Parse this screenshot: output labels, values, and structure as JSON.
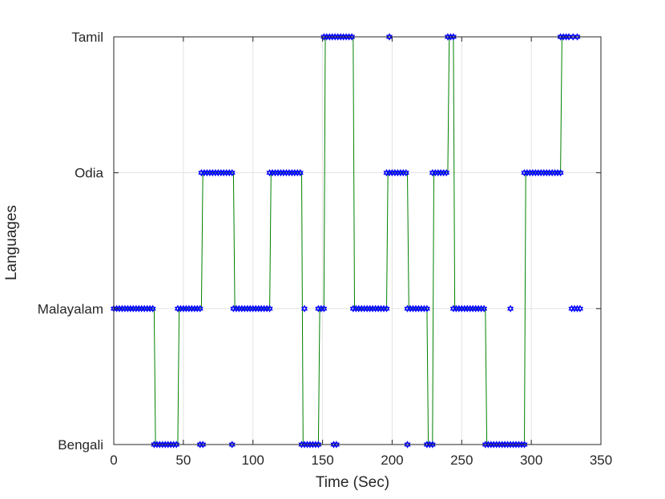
{
  "chart_data": {
    "type": "scatter",
    "title": "",
    "xlabel": "Time (Sec)",
    "ylabel": "Languages",
    "xlim": [
      0,
      350
    ],
    "xticks": [
      0,
      50,
      100,
      150,
      200,
      250,
      300,
      350
    ],
    "categories": [
      "Bengali",
      "Malayalam",
      "Odia",
      "Tamil"
    ],
    "grid": true,
    "line_color": "#008000",
    "marker_color": "#0000ff",
    "marker": "hexagram",
    "segments": [
      {
        "start": 0,
        "end": 29,
        "language": "Malayalam"
      },
      {
        "start": 29,
        "end": 46,
        "language": "Bengali"
      },
      {
        "start": 46,
        "end": 63,
        "language": "Malayalam"
      },
      {
        "start": 63,
        "end": 86,
        "language": "Odia"
      },
      {
        "start": 86,
        "end": 112,
        "language": "Malayalam"
      },
      {
        "start": 112,
        "end": 135,
        "language": "Odia"
      },
      {
        "start": 135,
        "end": 147,
        "language": "Bengali"
      },
      {
        "start": 147,
        "end": 151,
        "language": "Malayalam"
      },
      {
        "start": 151,
        "end": 172,
        "language": "Tamil"
      },
      {
        "start": 172,
        "end": 196,
        "language": "Malayalam"
      },
      {
        "start": 196,
        "end": 211,
        "language": "Odia"
      },
      {
        "start": 211,
        "end": 225,
        "language": "Malayalam"
      },
      {
        "start": 225,
        "end": 229,
        "language": "Bengali"
      },
      {
        "start": 229,
        "end": 240,
        "language": "Odia"
      },
      {
        "start": 240,
        "end": 244,
        "language": "Tamil"
      },
      {
        "start": 244,
        "end": 267,
        "language": "Malayalam"
      },
      {
        "start": 267,
        "end": 295,
        "language": "Bengali"
      },
      {
        "start": 295,
        "end": 321,
        "language": "Odia"
      },
      {
        "start": 321,
        "end": 328,
        "language": "Tamil"
      }
    ],
    "isolated_points": [
      {
        "x": 62,
        "language": "Bengali"
      },
      {
        "x": 64,
        "language": "Bengali"
      },
      {
        "x": 85,
        "language": "Bengali"
      },
      {
        "x": 137,
        "language": "Malayalam"
      },
      {
        "x": 158,
        "language": "Bengali"
      },
      {
        "x": 160,
        "language": "Bengali"
      },
      {
        "x": 198,
        "language": "Tamil"
      },
      {
        "x": 211,
        "language": "Bengali"
      },
      {
        "x": 285,
        "language": "Malayalam"
      },
      {
        "x": 329,
        "language": "Malayalam"
      },
      {
        "x": 331,
        "language": "Malayalam"
      },
      {
        "x": 333,
        "language": "Malayalam"
      },
      {
        "x": 335,
        "language": "Malayalam"
      },
      {
        "x": 330,
        "language": "Tamil"
      },
      {
        "x": 333,
        "language": "Tamil"
      }
    ],
    "marker_spacing": 2
  }
}
